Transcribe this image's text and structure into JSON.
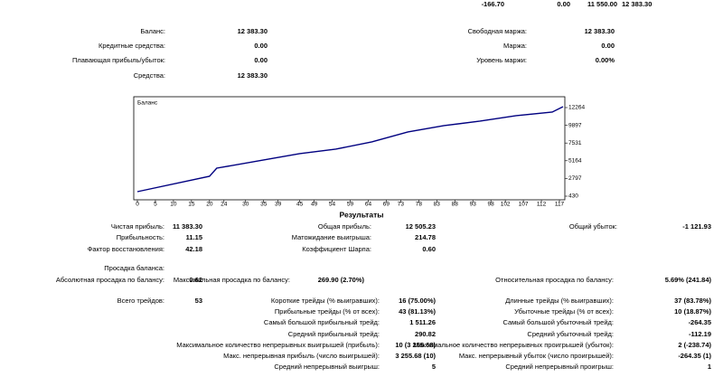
{
  "top_row": [
    "-166.70",
    "0.00",
    "11 550.00",
    "12 383.30"
  ],
  "account": {
    "left": [
      {
        "label": "Баланс:",
        "value": "12 383.30"
      },
      {
        "label": "Кредитные средства:",
        "value": "0.00"
      },
      {
        "label": "Плавающая прибыль/убыток:",
        "value": "0.00"
      },
      {
        "label": "Средства:",
        "value": "12 383.30"
      }
    ],
    "right": [
      {
        "label": "Свободная маржа:",
        "value": "12 383.30"
      },
      {
        "label": "Маржа:",
        "value": "0.00"
      },
      {
        "label": "Уровень маржи:",
        "value": "0.00%"
      }
    ]
  },
  "chart_data": {
    "type": "line",
    "title": "Баланс",
    "series": [
      {
        "name": "Баланс",
        "color": "#000080",
        "x": [
          0,
          20,
          22,
          35,
          45,
          55,
          65,
          75,
          85,
          95,
          105,
          115,
          118
        ],
        "values": [
          1034,
          3088,
          4175,
          5262,
          6108,
          6712,
          7678,
          9007,
          9852,
          10456,
          11181,
          11664,
          12383
        ]
      }
    ],
    "xlim": [
      0,
      118
    ],
    "xticks": [
      0,
      5,
      10,
      15,
      20,
      24,
      30,
      35,
      39,
      45,
      49,
      54,
      59,
      64,
      69,
      73,
      78,
      83,
      88,
      93,
      98,
      102,
      107,
      112,
      117
    ],
    "ylim": [
      430,
      12264
    ],
    "yticks": [
      430,
      2797,
      5164,
      7531,
      9897,
      12264
    ]
  },
  "results": {
    "heading": "Результаты",
    "rows": [
      {
        "left": {
          "label": "Чистая прибыль:",
          "value": "11 383.30"
        },
        "middle": {
          "label": "Общая прибыль:",
          "value": "12 505.23"
        },
        "right": {
          "label": "Общий убыток:",
          "value": "-1 121.93"
        }
      },
      {
        "left": {
          "label": "Прибыльность:",
          "value": "11.15"
        },
        "middle": {
          "label": "Матожидание выигрыша:",
          "value": "214.78"
        }
      },
      {
        "left": {
          "label": "Фактор восстановления:",
          "value": "42.18"
        },
        "middle": {
          "label": "Коэффициент Шарпа:",
          "value": "0.60"
        }
      },
      {
        "left": {
          "label": "Просадка баланса:"
        }
      },
      {
        "left": {
          "label": "Абсолютная просадка по балансу:",
          "value": "0.62"
        },
        "middle": {
          "label": "Максимальная просадка по балансу:",
          "value": "269.90 (2.70%)"
        },
        "right": {
          "label": "Относительная просадка по балансу:",
          "value": "5.69% (241.84)"
        }
      },
      {
        "left": {
          "label": "Всего трейдов:",
          "value": "53"
        },
        "middle": {
          "label": "Короткие трейды (% выигравших):",
          "value": "16 (75.00%)"
        },
        "right": {
          "label": "Длинные трейды (% выигравших):",
          "value": "37 (83.78%)"
        }
      },
      {
        "middle": {
          "label": "Прибыльные трейды (% от всех):",
          "value": "43 (81.13%)"
        },
        "right": {
          "label": "Убыточные трейды (% от всех):",
          "value": "10 (18.87%)"
        }
      },
      {
        "middle": {
          "label": "Самый большой прибыльный трейд:",
          "value": "1 511.26"
        },
        "right": {
          "label": "Самый большой убыточный трейд:",
          "value": "-264.35"
        }
      },
      {
        "middle": {
          "label": "Средний прибыльный трейд:",
          "value": "290.82"
        },
        "right": {
          "label": "Средний убыточный трейд:",
          "value": "-112.19"
        }
      },
      {
        "middle": {
          "label": "Максимальное количество непрерывных выигрышей (прибыль):",
          "value": "10 (3 255.68)"
        },
        "right": {
          "label": "Максимальное количество непрерывных проигрышей (убыток):",
          "value": "2 (-238.74)"
        }
      },
      {
        "middle": {
          "label": "Макс. непрерывная прибыль (число выигрышей):",
          "value": "3 255.68 (10)"
        },
        "right": {
          "label": "Макс. непрерывный убыток (число проигрышей):",
          "value": "-264.35 (1)"
        }
      },
      {
        "middle": {
          "label": "Средний непрерывный выигрыш:",
          "value": "5"
        },
        "right": {
          "label": "Средний непрерывный проигрыш:",
          "value": "1"
        }
      }
    ]
  }
}
